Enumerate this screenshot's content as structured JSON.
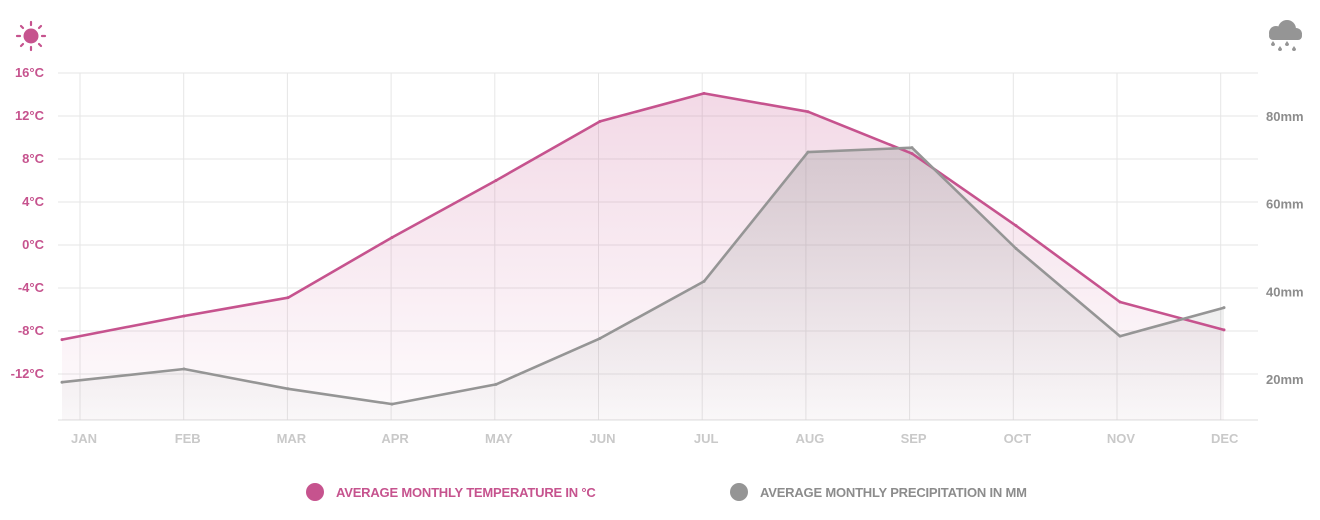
{
  "colors": {
    "temperature": "#c6538e",
    "precipitation": "#959595",
    "grid": "#e6e6e6",
    "month_label": "#c9c9c9",
    "right_label": "#8c8c8c"
  },
  "icons": {
    "left": "sun-icon",
    "right": "rain-cloud-icon"
  },
  "legend": {
    "temperature_label": "AVERAGE MONTHLY TEMPERATURE IN °C",
    "precipitation_label": "AVERAGE MONTHLY PRECIPITATION IN MM"
  },
  "chart_data": {
    "type": "line",
    "categories": [
      "JAN",
      "FEB",
      "MAR",
      "APR",
      "MAY",
      "JUN",
      "JUL",
      "AUG",
      "SEP",
      "OCT",
      "NOV",
      "DEC"
    ],
    "series": [
      {
        "name": "AVERAGE MONTHLY TEMPERATURE IN °C",
        "axis": "left",
        "area": true,
        "values": [
          -8.8,
          -6.6,
          -4.9,
          0.7,
          6.0,
          11.5,
          14.1,
          12.4,
          8.5,
          1.8,
          -5.3,
          -7.9
        ]
      },
      {
        "name": "AVERAGE MONTHLY PRECIPITATION IN MM",
        "axis": "right",
        "area": true,
        "values": [
          19.5,
          22.5,
          18.0,
          14.5,
          19.0,
          29.5,
          42.5,
          72.0,
          73.0,
          50.0,
          30.0,
          36.5
        ]
      }
    ],
    "y_left": {
      "unit": "°C",
      "ticks": [
        "16°C",
        "12°C",
        "8°C",
        "4°C",
        "0°C",
        "-4°C",
        "-8°C",
        "-12°C"
      ],
      "tick_values": [
        16,
        12,
        8,
        4,
        0,
        -4,
        -8,
        -12
      ]
    },
    "y_right": {
      "unit": "mm",
      "ticks": [
        "80mm",
        "60mm",
        "40mm",
        "20mm"
      ],
      "tick_values": [
        80,
        60,
        40,
        20
      ]
    },
    "grid": true,
    "legend_position": "bottom"
  }
}
